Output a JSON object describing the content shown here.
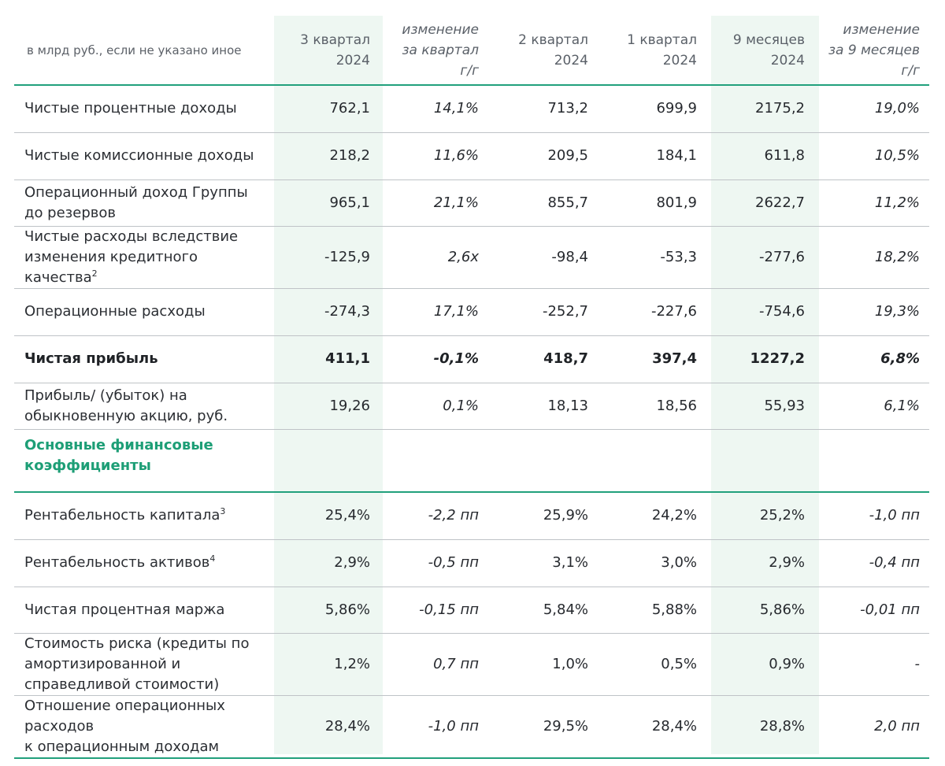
{
  "header": {
    "label": "в млрд руб., если не указано иное",
    "q3_2024": [
      "3 квартал",
      "2024"
    ],
    "change_q": [
      "изменение",
      "за квартал",
      "г/г"
    ],
    "q2_2024": [
      "2 квартал",
      "2024"
    ],
    "q1_2024": [
      "1 квартал",
      "2024"
    ],
    "m9_2024": [
      "9 месяцев",
      "2024"
    ],
    "change_9m": [
      "изменение",
      "за 9 месяцев",
      "г/г"
    ]
  },
  "rows": [
    {
      "label": [
        "Чистые процентные доходы"
      ],
      "sup": "",
      "q3": "762,1",
      "chq": "14,1%",
      "q2": "713,2",
      "q1": "699,9",
      "m9": "2175,2",
      "ch9": "19,0%",
      "h": 60
    },
    {
      "label": [
        "Чистые комиссионные доходы"
      ],
      "sup": "",
      "q3": "218,2",
      "chq": "11,6%",
      "q2": "209,5",
      "q1": "184,1",
      "m9": "611,8",
      "ch9": "10,5%",
      "h": 60
    },
    {
      "label": [
        "Операционный доход Группы",
        "до резервов"
      ],
      "sup": "",
      "q3": "965,1",
      "chq": "21,1%",
      "q2": "855,7",
      "q1": "801,9",
      "m9": "2622,7",
      "ch9": "11,2%",
      "h": 59
    },
    {
      "label": [
        "Чистые расходы вследствие",
        "изменения кредитного",
        "качества"
      ],
      "sup": "2",
      "q3": "-125,9",
      "chq": "2,6x",
      "q2": "-98,4",
      "q1": "-53,3",
      "m9": "-277,6",
      "ch9": "18,2%",
      "h": 79
    },
    {
      "label": [
        "Операционные расходы"
      ],
      "sup": "",
      "q3": "-274,3",
      "chq": "17,1%",
      "q2": "-252,7",
      "q1": "-227,6",
      "m9": "-754,6",
      "ch9": "19,3%",
      "h": 60
    },
    {
      "label": [
        "Чистая прибыль"
      ],
      "sup": "",
      "q3": "411,1",
      "chq": "-0,1%",
      "q2": "418,7",
      "q1": "397,4",
      "m9": "1227,2",
      "ch9": "6,8%",
      "h": 60,
      "bold": true
    },
    {
      "label": [
        "Прибыль/ (убыток) на",
        "обыкновенную акцию, руб."
      ],
      "sup": "",
      "q3": "19,26",
      "chq": "0,1%",
      "q2": "18,13",
      "q1": "18,56",
      "m9": "55,93",
      "ch9": "6,1%",
      "h": 59
    }
  ],
  "section_title": [
    "Основные финансовые",
    "коэффициенты"
  ],
  "ratios": [
    {
      "label": [
        "Рентабельность капитала"
      ],
      "sup": "3",
      "q3": "25,4%",
      "chq": "-2,2 пп",
      "q2": "25,9%",
      "q1": "24,2%",
      "m9": "25,2%",
      "ch9": "-1,0 пп",
      "h": 60
    },
    {
      "label": [
        "Рентабельность активов"
      ],
      "sup": "4",
      "q3": "2,9%",
      "chq": "-0,5 пп",
      "q2": "3,1%",
      "q1": "3,0%",
      "m9": "2,9%",
      "ch9": "-0,4 пп",
      "h": 60
    },
    {
      "label": [
        "Чистая процентная маржа"
      ],
      "sup": "",
      "q3": "5,86%",
      "chq": "-0,15 пп",
      "q2": "5,84%",
      "q1": "5,88%",
      "m9": "5,86%",
      "ch9": "-0,01 пп",
      "h": 59
    },
    {
      "label": [
        "Стоимость риска (кредиты по",
        "амортизированной и",
        "справедливой стоимости)"
      ],
      "sup": "",
      "q3": "1,2%",
      "chq": "0,7 пп",
      "q2": "1,0%",
      "q1": "0,5%",
      "m9": "0,9%",
      "ch9": "-",
      "h": 79
    },
    {
      "label": [
        "Отношение операционных",
        "расходов",
        "к операционным доходам"
      ],
      "sup": "",
      "q3": "28,4%",
      "chq": "-1,0 пп",
      "q2": "29,5%",
      "q1": "28,4%",
      "m9": "28,8%",
      "ch9": "2,0 пп",
      "h": 78
    }
  ],
  "colors": {
    "accent": "#21a07c",
    "highlight": "#eef7f2",
    "divider": "#bfc3c7"
  }
}
